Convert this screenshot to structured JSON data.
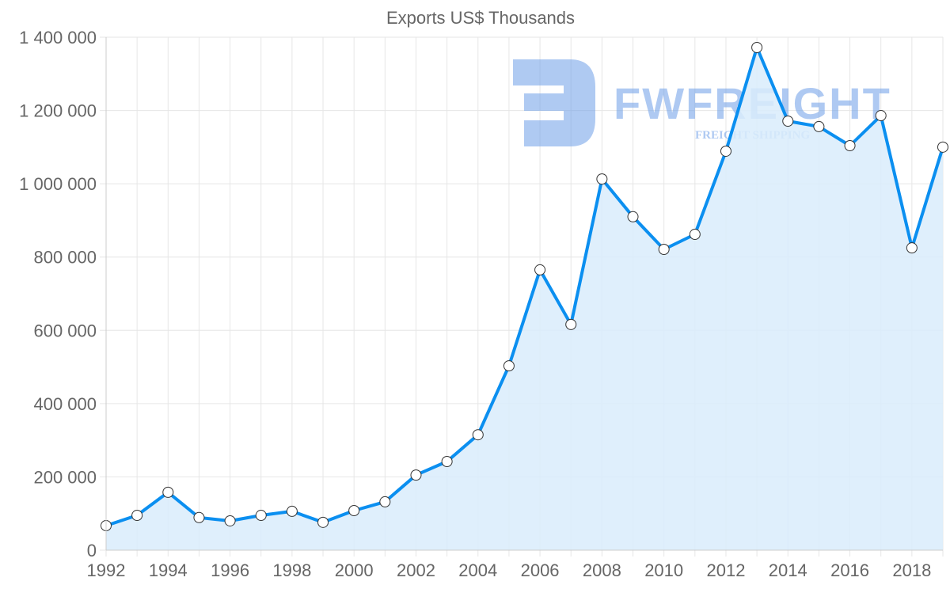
{
  "chart_data": {
    "type": "area",
    "title": "Exports US$ Thousands",
    "xlabel": "",
    "ylabel": "",
    "x": [
      1992,
      1993,
      1994,
      1995,
      1996,
      1997,
      1998,
      1999,
      2000,
      2001,
      2002,
      2003,
      2004,
      2005,
      2006,
      2007,
      2008,
      2009,
      2010,
      2011,
      2012,
      2013,
      2014,
      2015,
      2016,
      2017,
      2018,
      2019
    ],
    "series": [
      {
        "name": "Exports US$ Thousands",
        "values": [
          67000,
          95000,
          158000,
          89000,
          80000,
          95000,
          106000,
          76000,
          108000,
          132000,
          205000,
          242000,
          315000,
          503000,
          765000,
          616000,
          1013000,
          910000,
          821000,
          862000,
          1089000,
          1372000,
          1171000,
          1156000,
          1104000,
          1186000,
          825000,
          1100000
        ]
      }
    ],
    "ylim": [
      0,
      1400000
    ],
    "xlim": [
      1992,
      2019
    ],
    "yticks": [
      "0",
      "200 000",
      "400 000",
      "600 000",
      "800 000",
      "1 000 000",
      "1 200 000",
      "1 400 000"
    ],
    "xticks": [
      "1992",
      "1994",
      "1996",
      "1998",
      "2000",
      "2002",
      "2004",
      "2006",
      "2008",
      "2010",
      "2012",
      "2014",
      "2016",
      "2018"
    ],
    "grid": true,
    "colors": {
      "line": "#0b8ff0",
      "fill": "#d9ecfc",
      "grid": "#e6e6e6"
    }
  },
  "watermark": {
    "brand": "FWFREIGHT",
    "tagline": "FREIGHT SHIPPING"
  }
}
